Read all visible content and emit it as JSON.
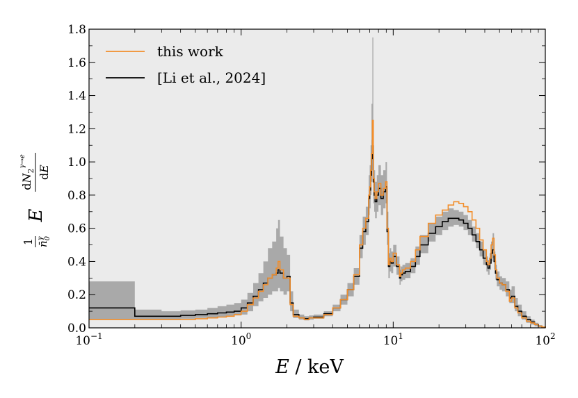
{
  "chart_data": {
    "type": "line",
    "xscale": "log",
    "xlim": [
      0.1,
      100
    ],
    "ylim": [
      0.0,
      1.8
    ],
    "xlabel": "E / keV",
    "ylabel": "(1/n̄γ0) E dN2γ→e/dE",
    "x_ticks": [
      {
        "value": 0.1,
        "base": "10",
        "exp": "−1"
      },
      {
        "value": 1,
        "base": "10",
        "exp": "0"
      },
      {
        "value": 10,
        "base": "10",
        "exp": "1"
      },
      {
        "value": 100,
        "base": "10",
        "exp": "2"
      }
    ],
    "y_ticks": [
      "0.0",
      "0.2",
      "0.4",
      "0.6",
      "0.8",
      "1.0",
      "1.2",
      "1.4",
      "1.6",
      "1.8"
    ],
    "legend": {
      "position": "top-left",
      "entries": [
        "this work",
        "[Li et al., 2024]"
      ]
    },
    "colors": {
      "this_work": "#f28e2b",
      "li": "#000000",
      "band": "#9e9e9e",
      "background": "#ebebeb"
    },
    "series": [
      {
        "name": "this work",
        "x": [
          0.1,
          0.2,
          0.3,
          0.4,
          0.5,
          0.6,
          0.7,
          0.8,
          0.9,
          1.0,
          1.1,
          1.2,
          1.3,
          1.4,
          1.5,
          1.6,
          1.7,
          1.75,
          1.8,
          1.9,
          2.0,
          2.1,
          2.2,
          2.4,
          2.6,
          2.8,
          3.0,
          3.5,
          4.0,
          4.5,
          5.0,
          5.5,
          6.0,
          6.3,
          6.6,
          6.9,
          7.0,
          7.1,
          7.2,
          7.3,
          7.4,
          7.5,
          7.6,
          7.8,
          8.0,
          8.3,
          8.6,
          8.9,
          9.1,
          9.3,
          9.5,
          9.7,
          10.0,
          10.5,
          11.0,
          11.2,
          11.5,
          12,
          13,
          14,
          15,
          17,
          19,
          21,
          23,
          25,
          27,
          29,
          31,
          33,
          35,
          37,
          39,
          41,
          42,
          43,
          44,
          45,
          46,
          47,
          48,
          50,
          52,
          55,
          58,
          60,
          63,
          66,
          70,
          75,
          80,
          85,
          90,
          95,
          100
        ],
        "y": [
          0.05,
          0.05,
          0.05,
          0.05,
          0.055,
          0.06,
          0.065,
          0.07,
          0.08,
          0.1,
          0.14,
          0.18,
          0.22,
          0.26,
          0.3,
          0.32,
          0.36,
          0.4,
          0.35,
          0.3,
          0.3,
          0.14,
          0.07,
          0.06,
          0.05,
          0.06,
          0.06,
          0.08,
          0.12,
          0.17,
          0.23,
          0.32,
          0.5,
          0.6,
          0.66,
          0.8,
          0.85,
          0.95,
          1.05,
          1.25,
          0.9,
          0.82,
          0.78,
          0.82,
          0.87,
          0.8,
          0.84,
          0.88,
          0.6,
          0.38,
          0.42,
          0.4,
          0.45,
          0.38,
          0.31,
          0.33,
          0.35,
          0.36,
          0.4,
          0.47,
          0.55,
          0.63,
          0.68,
          0.71,
          0.74,
          0.76,
          0.75,
          0.73,
          0.7,
          0.65,
          0.6,
          0.53,
          0.47,
          0.4,
          0.38,
          0.42,
          0.5,
          0.54,
          0.44,
          0.35,
          0.3,
          0.27,
          0.26,
          0.22,
          0.16,
          0.18,
          0.12,
          0.09,
          0.06,
          0.04,
          0.03,
          0.02,
          0.01,
          0.005,
          0.0
        ]
      },
      {
        "name": "[Li et al., 2024]",
        "x": [
          0.1,
          0.2,
          0.3,
          0.4,
          0.5,
          0.6,
          0.7,
          0.8,
          0.9,
          1.0,
          1.1,
          1.2,
          1.3,
          1.4,
          1.5,
          1.6,
          1.7,
          1.75,
          1.8,
          1.9,
          2.0,
          2.1,
          2.2,
          2.4,
          2.6,
          2.8,
          3.0,
          3.5,
          4.0,
          4.5,
          5.0,
          5.5,
          6.0,
          6.3,
          6.6,
          6.9,
          7.0,
          7.1,
          7.2,
          7.3,
          7.4,
          7.5,
          7.6,
          7.8,
          8.0,
          8.3,
          8.6,
          8.9,
          9.1,
          9.3,
          9.5,
          9.7,
          10.0,
          10.5,
          11.0,
          11.2,
          11.5,
          12,
          13,
          14,
          15,
          17,
          19,
          21,
          23,
          25,
          27,
          29,
          31,
          33,
          35,
          37,
          39,
          41,
          42,
          43,
          44,
          45,
          46,
          47,
          48,
          50,
          52,
          55,
          58,
          60,
          63,
          66,
          70,
          75,
          80,
          85,
          90,
          95,
          100
        ],
        "y": [
          0.12,
          0.07,
          0.07,
          0.075,
          0.08,
          0.085,
          0.09,
          0.095,
          0.1,
          0.12,
          0.15,
          0.19,
          0.23,
          0.27,
          0.3,
          0.32,
          0.33,
          0.35,
          0.33,
          0.3,
          0.31,
          0.15,
          0.08,
          0.06,
          0.055,
          0.06,
          0.065,
          0.085,
          0.12,
          0.17,
          0.23,
          0.31,
          0.48,
          0.58,
          0.64,
          0.78,
          0.83,
          0.92,
          1.02,
          1.13,
          0.88,
          0.8,
          0.76,
          0.8,
          0.84,
          0.78,
          0.82,
          0.85,
          0.58,
          0.37,
          0.4,
          0.39,
          0.43,
          0.37,
          0.3,
          0.32,
          0.33,
          0.34,
          0.37,
          0.43,
          0.5,
          0.57,
          0.61,
          0.64,
          0.66,
          0.66,
          0.65,
          0.63,
          0.6,
          0.56,
          0.52,
          0.47,
          0.42,
          0.38,
          0.36,
          0.39,
          0.45,
          0.47,
          0.4,
          0.33,
          0.29,
          0.27,
          0.26,
          0.23,
          0.18,
          0.19,
          0.13,
          0.1,
          0.07,
          0.05,
          0.035,
          0.02,
          0.01,
          0.005,
          0.0
        ]
      }
    ],
    "uncertainty_band": {
      "series": "[Li et al., 2024]",
      "x": [
        0.1,
        0.2,
        0.3,
        0.4,
        0.5,
        0.6,
        0.7,
        0.8,
        0.9,
        1.0,
        1.1,
        1.2,
        1.3,
        1.4,
        1.5,
        1.6,
        1.7,
        1.75,
        1.8,
        1.9,
        2.0,
        2.1,
        2.2,
        2.4,
        2.6,
        2.8,
        3.0,
        3.5,
        4.0,
        4.5,
        5.0,
        5.5,
        6.0,
        6.3,
        6.6,
        6.9,
        7.0,
        7.1,
        7.2,
        7.3,
        7.4,
        7.5,
        7.6,
        7.8,
        8.0,
        8.3,
        8.6,
        8.9,
        9.1,
        9.3,
        9.5,
        9.7,
        10.0,
        10.5,
        11.0,
        11.2,
        11.5,
        12,
        13,
        14,
        15,
        17,
        19,
        21,
        23,
        25,
        27,
        29,
        31,
        33,
        35,
        37,
        39,
        41,
        42,
        43,
        44,
        45,
        46,
        47,
        48,
        50,
        52,
        55,
        58,
        60,
        63,
        66,
        70,
        75,
        80,
        85,
        90,
        95,
        100
      ],
      "lower": [
        0.05,
        0.05,
        0.05,
        0.055,
        0.06,
        0.06,
        0.065,
        0.07,
        0.075,
        0.08,
        0.1,
        0.13,
        0.16,
        0.18,
        0.2,
        0.22,
        0.22,
        0.24,
        0.22,
        0.2,
        0.22,
        0.1,
        0.06,
        0.05,
        0.045,
        0.05,
        0.055,
        0.07,
        0.1,
        0.14,
        0.19,
        0.26,
        0.42,
        0.5,
        0.56,
        0.68,
        0.72,
        0.8,
        0.88,
        0.95,
        0.75,
        0.7,
        0.66,
        0.7,
        0.74,
        0.68,
        0.72,
        0.75,
        0.5,
        0.3,
        0.34,
        0.33,
        0.37,
        0.32,
        0.26,
        0.28,
        0.29,
        0.3,
        0.33,
        0.38,
        0.45,
        0.52,
        0.56,
        0.59,
        0.61,
        0.62,
        0.61,
        0.59,
        0.56,
        0.52,
        0.48,
        0.43,
        0.38,
        0.34,
        0.32,
        0.35,
        0.4,
        0.42,
        0.35,
        0.29,
        0.25,
        0.23,
        0.22,
        0.19,
        0.15,
        0.15,
        0.1,
        0.07,
        0.05,
        0.03,
        0.02,
        0.01,
        0.005,
        0.002,
        0.0
      ],
      "upper": [
        0.28,
        0.11,
        0.1,
        0.105,
        0.11,
        0.12,
        0.13,
        0.14,
        0.15,
        0.17,
        0.21,
        0.27,
        0.33,
        0.4,
        0.48,
        0.52,
        0.6,
        0.65,
        0.55,
        0.48,
        0.44,
        0.22,
        0.11,
        0.08,
        0.07,
        0.075,
        0.08,
        0.1,
        0.14,
        0.2,
        0.27,
        0.36,
        0.56,
        0.67,
        0.73,
        0.92,
        0.98,
        1.1,
        1.35,
        1.75,
        1.1,
        0.95,
        0.88,
        0.92,
        0.98,
        0.92,
        0.95,
        1.0,
        0.7,
        0.45,
        0.48,
        0.46,
        0.5,
        0.43,
        0.35,
        0.37,
        0.38,
        0.39,
        0.42,
        0.49,
        0.56,
        0.63,
        0.67,
        0.7,
        0.72,
        0.71,
        0.7,
        0.68,
        0.65,
        0.61,
        0.57,
        0.52,
        0.47,
        0.43,
        0.41,
        0.45,
        0.52,
        0.57,
        0.46,
        0.38,
        0.34,
        0.31,
        0.3,
        0.28,
        0.23,
        0.25,
        0.18,
        0.14,
        0.1,
        0.07,
        0.05,
        0.03,
        0.015,
        0.008,
        0.0
      ]
    }
  }
}
